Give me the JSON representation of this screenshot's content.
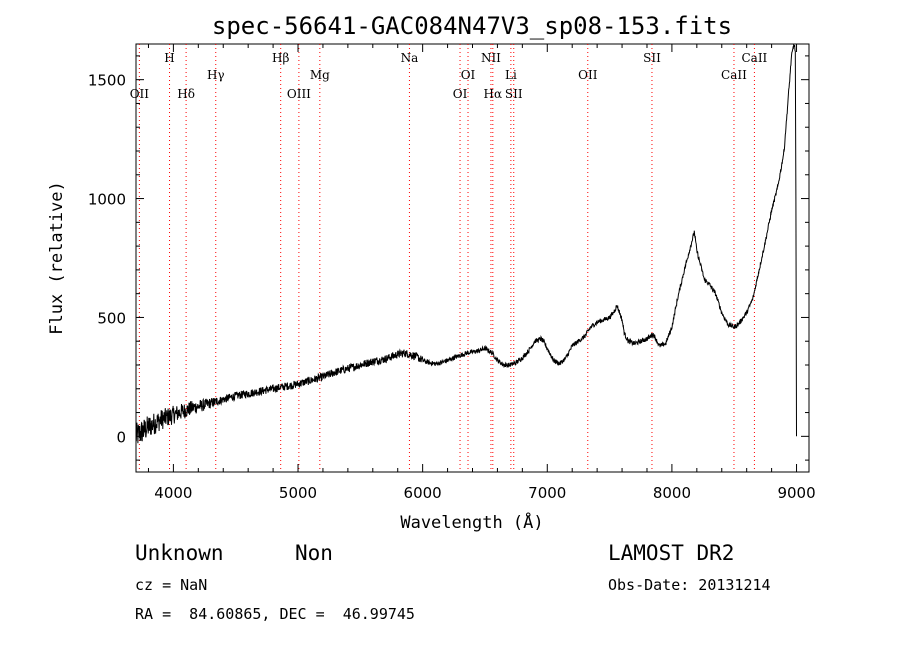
{
  "chart_data": {
    "type": "line",
    "title": "spec-56641-GAC084N47V3_sp08-153.fits",
    "xlabel": "Wavelength (Å)",
    "ylabel": "Flux (relative)",
    "xlim": [
      3700,
      9100
    ],
    "ylim": [
      -150,
      1650
    ],
    "xticks": [
      4000,
      5000,
      6000,
      7000,
      8000,
      9000
    ],
    "yticks": [
      0,
      500,
      1000,
      1500
    ],
    "grid": false,
    "series": [
      {
        "color": "#000000",
        "x": [
          3700,
          3750,
          3800,
          3850,
          3900,
          3950,
          4000,
          4050,
          4100,
          4150,
          4200,
          4300,
          4400,
          4500,
          4600,
          4700,
          4800,
          4900,
          5000,
          5100,
          5200,
          5300,
          5400,
          5500,
          5600,
          5700,
          5800,
          5850,
          5900,
          5950,
          6000,
          6050,
          6100,
          6150,
          6200,
          6250,
          6300,
          6350,
          6400,
          6450,
          6500,
          6530,
          6560,
          6600,
          6650,
          6700,
          6750,
          6800,
          6850,
          6900,
          6950,
          6980,
          7000,
          7050,
          7100,
          7150,
          7200,
          7250,
          7300,
          7350,
          7400,
          7450,
          7500,
          7530,
          7560,
          7580,
          7600,
          7620,
          7650,
          7700,
          7750,
          7800,
          7850,
          7900,
          7950,
          8000,
          8050,
          8100,
          8150,
          8180,
          8200,
          8230,
          8260,
          8300,
          8350,
          8400,
          8450,
          8500,
          8530,
          8560,
          8600,
          8650,
          8700,
          8750,
          8800,
          8850,
          8900,
          8930,
          8960,
          8980,
          8990,
          8995,
          9000
        ],
        "y": [
          0,
          20,
          40,
          55,
          70,
          80,
          90,
          100,
          110,
          120,
          125,
          140,
          155,
          170,
          180,
          190,
          200,
          210,
          220,
          235,
          250,
          270,
          285,
          300,
          315,
          325,
          345,
          350,
          345,
          335,
          320,
          310,
          305,
          310,
          320,
          330,
          340,
          350,
          355,
          360,
          370,
          360,
          350,
          320,
          300,
          300,
          310,
          330,
          360,
          400,
          410,
          390,
          370,
          320,
          305,
          330,
          380,
          400,
          420,
          460,
          480,
          490,
          500,
          520,
          550,
          520,
          490,
          430,
          400,
          390,
          400,
          410,
          430,
          380,
          390,
          460,
          590,
          700,
          800,
          860,
          780,
          720,
          660,
          640,
          600,
          520,
          470,
          460,
          470,
          490,
          520,
          580,
          700,
          820,
          950,
          1050,
          1200,
          1400,
          1600,
          1650,
          1620,
          1000,
          0
        ]
      }
    ],
    "annotations": [
      {
        "label": "OII",
        "x": 3727,
        "row": 2
      },
      {
        "label": "H",
        "x": 3969,
        "row": 0
      },
      {
        "label": "Hδ",
        "x": 4102,
        "row": 2
      },
      {
        "label": "Hγ",
        "x": 4340,
        "row": 1
      },
      {
        "label": "Hβ",
        "x": 4861,
        "row": 0
      },
      {
        "label": "OIII",
        "x": 5007,
        "row": 2
      },
      {
        "label": "Mg",
        "x": 5175,
        "row": 1
      },
      {
        "label": "Na",
        "x": 5894,
        "row": 0
      },
      {
        "label": "OI",
        "x": 6300,
        "row": 2
      },
      {
        "label": "OI",
        "x": 6364,
        "row": 1
      },
      {
        "label": "NII",
        "x": 6548,
        "row": 0
      },
      {
        "label": "Hα",
        "x": 6563,
        "row": 2
      },
      {
        "label": "Li",
        "x": 6708,
        "row": 1
      },
      {
        "label": "SII",
        "x": 6731,
        "row": 2
      },
      {
        "label": "OII",
        "x": 7325,
        "row": 1
      },
      {
        "label": "SII",
        "x": 7840,
        "row": 0
      },
      {
        "label": "CaII",
        "x": 8498,
        "row": 1
      },
      {
        "label": "CaII",
        "x": 8662,
        "row": 0
      }
    ],
    "line_markers_color": "#ff0000"
  },
  "info": {
    "class": "Unknown",
    "subclass": "Non",
    "survey": "LAMOST DR2",
    "cz": "cz = NaN",
    "obs_date": "Obs-Date: 20131214",
    "coords": "RA =  84.60865, DEC =  46.99745"
  }
}
